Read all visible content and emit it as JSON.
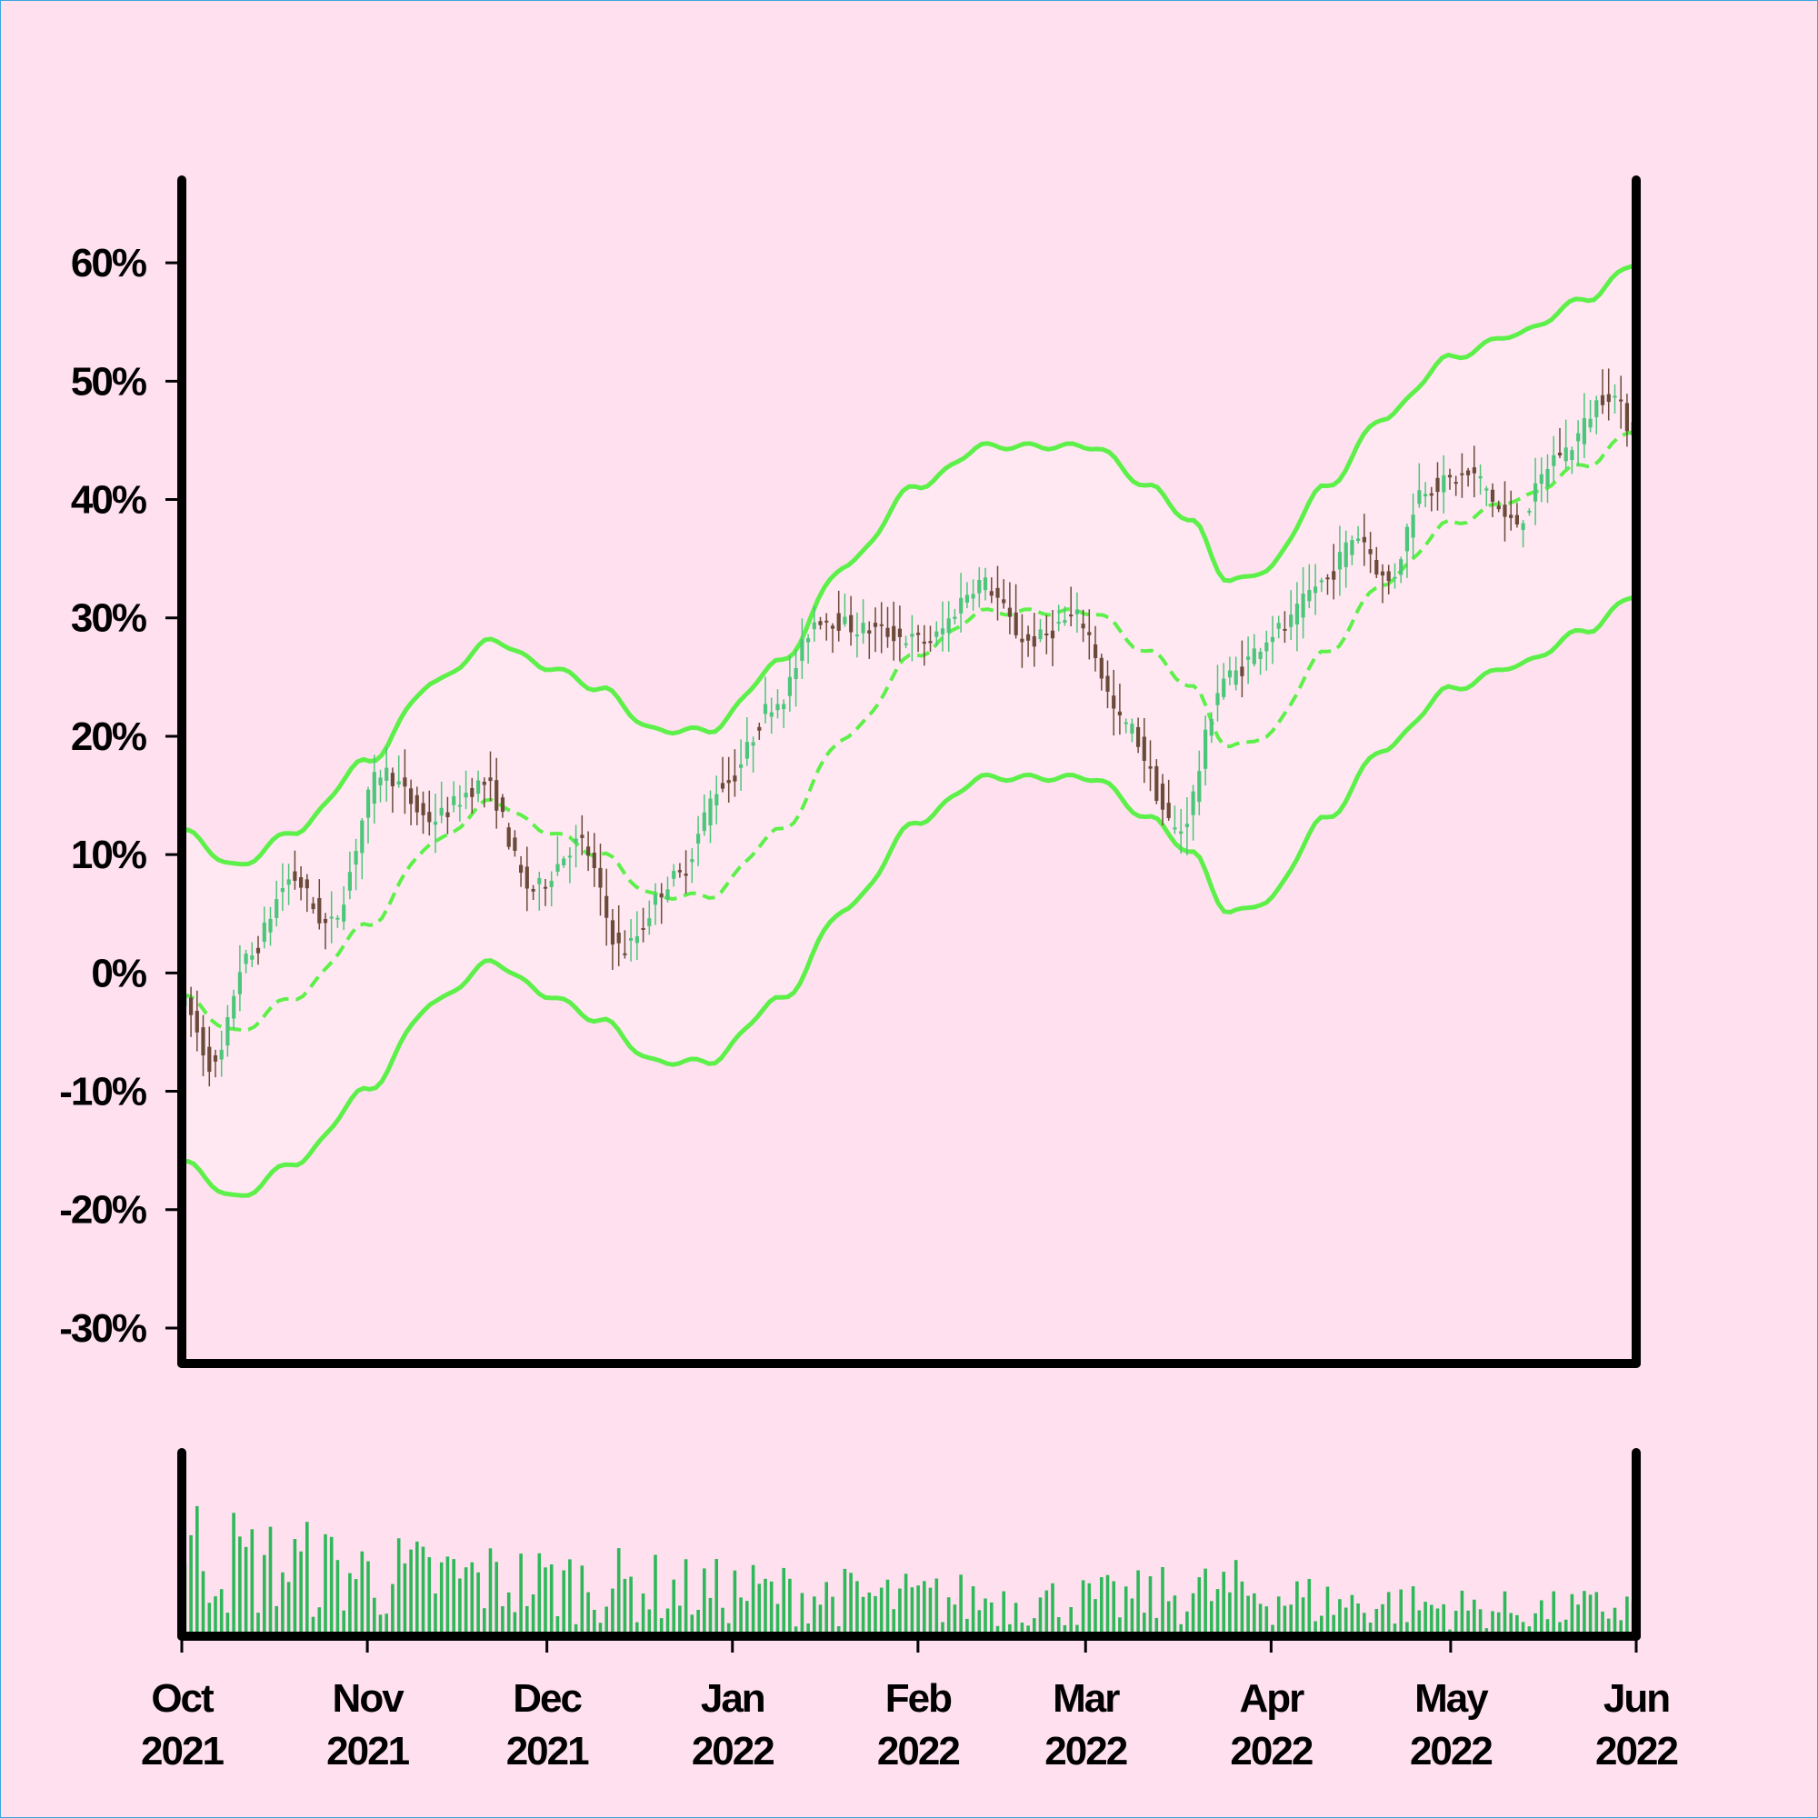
{
  "chart_data": {
    "type": "candlestick",
    "title": "",
    "xlabel": "",
    "ylabel": "",
    "y_unit": "%",
    "ylim": [
      -33,
      67
    ],
    "yticks": [
      {
        "value": 60,
        "label": "60%"
      },
      {
        "value": 50,
        "label": "50%"
      },
      {
        "value": 40,
        "label": "40%"
      },
      {
        "value": 30,
        "label": "30%"
      },
      {
        "value": 20,
        "label": "20%"
      },
      {
        "value": 10,
        "label": "10%"
      },
      {
        "value": 0,
        "label": "0%"
      },
      {
        "value": -10,
        "label": "-10%"
      },
      {
        "value": -20,
        "label": "-20%"
      },
      {
        "value": -30,
        "label": "-30%"
      }
    ],
    "xlim": [
      "2021-10-01",
      "2022-06-01"
    ],
    "xticks": [
      {
        "date": "2021-10-01",
        "month": "Oct",
        "year": "2021"
      },
      {
        "date": "2021-11-01",
        "month": "Nov",
        "year": "2021"
      },
      {
        "date": "2021-12-01",
        "month": "Dec",
        "year": "2021"
      },
      {
        "date": "2022-01-01",
        "month": "Jan",
        "year": "2022"
      },
      {
        "date": "2022-02-01",
        "month": "Feb",
        "year": "2022"
      },
      {
        "date": "2022-03-01",
        "month": "Mar",
        "year": "2022"
      },
      {
        "date": "2022-04-01",
        "month": "Apr",
        "year": "2022"
      },
      {
        "date": "2022-05-01",
        "month": "May",
        "year": "2022"
      },
      {
        "date": "2022-06-01",
        "month": "Jun",
        "year": "2022"
      }
    ],
    "grid": false,
    "colors": {
      "up": "#4cc67a",
      "down": "#6b4a3a",
      "band": "#5ef04a",
      "volume": "#2fb85a",
      "background": "#ffe0ee"
    },
    "price_keypoints": [
      [
        "2021-10-01",
        -2
      ],
      [
        "2021-10-07",
        -8
      ],
      [
        "2021-10-12",
        1
      ],
      [
        "2021-10-20",
        8
      ],
      [
        "2021-10-26",
        4
      ],
      [
        "2021-11-04",
        17
      ],
      [
        "2021-11-12",
        13
      ],
      [
        "2021-11-21",
        16
      ],
      [
        "2021-11-29",
        7
      ],
      [
        "2021-12-07",
        11
      ],
      [
        "2021-12-14",
        2
      ],
      [
        "2021-12-23",
        8
      ],
      [
        "2021-12-31",
        16
      ],
      [
        "2022-01-09",
        23
      ],
      [
        "2022-01-16",
        30
      ],
      [
        "2022-01-24",
        29
      ],
      [
        "2022-02-03",
        28
      ],
      [
        "2022-02-12",
        33
      ],
      [
        "2022-02-20",
        28
      ],
      [
        "2022-02-28",
        30
      ],
      [
        "2022-03-08",
        21
      ],
      [
        "2022-03-17",
        12
      ],
      [
        "2022-03-25",
        25
      ],
      [
        "2022-04-03",
        29
      ],
      [
        "2022-04-10",
        33
      ],
      [
        "2022-04-16",
        37
      ],
      [
        "2022-04-21",
        33
      ],
      [
        "2022-04-27",
        41
      ],
      [
        "2022-05-05",
        42
      ],
      [
        "2022-05-12",
        38
      ],
      [
        "2022-05-20",
        44
      ],
      [
        "2022-05-28",
        49
      ],
      [
        "2022-06-01",
        46
      ]
    ],
    "middle_band_keypoints": [
      [
        "2021-10-01",
        -2
      ],
      [
        "2021-10-10",
        -5
      ],
      [
        "2021-10-20",
        -2
      ],
      [
        "2021-11-01",
        4
      ],
      [
        "2021-11-12",
        11
      ],
      [
        "2021-11-22",
        14.5
      ],
      [
        "2021-12-01",
        12
      ],
      [
        "2021-12-10",
        10
      ],
      [
        "2021-12-19",
        6.5
      ],
      [
        "2021-12-28",
        6.5
      ],
      [
        "2022-01-09",
        12
      ],
      [
        "2022-01-20",
        20
      ],
      [
        "2022-02-01",
        27
      ],
      [
        "2022-02-12",
        30.5
      ],
      [
        "2022-02-22",
        30.5
      ],
      [
        "2022-03-02",
        30.5
      ],
      [
        "2022-03-12",
        27
      ],
      [
        "2022-03-19",
        24
      ],
      [
        "2022-03-25",
        19
      ],
      [
        "2022-03-31",
        20
      ],
      [
        "2022-04-10",
        27
      ],
      [
        "2022-04-20",
        33
      ],
      [
        "2022-05-01",
        38
      ],
      [
        "2022-05-12",
        40
      ],
      [
        "2022-05-24",
        43
      ],
      [
        "2022-06-01",
        46
      ]
    ],
    "band_halfwidth_keypoints": [
      [
        "2021-10-01",
        14
      ],
      [
        "2021-10-25",
        14
      ],
      [
        "2021-11-15",
        13.5
      ],
      [
        "2021-12-10",
        14
      ],
      [
        "2021-12-28",
        14
      ],
      [
        "2022-01-20",
        14.5
      ],
      [
        "2022-02-10",
        14
      ],
      [
        "2022-03-05",
        14
      ],
      [
        "2022-03-22",
        14
      ],
      [
        "2022-04-01",
        14
      ],
      [
        "2022-05-01",
        14
      ],
      [
        "2022-06-01",
        14
      ]
    ],
    "volume_profile_keypoints": [
      [
        "2021-10-01",
        75
      ],
      [
        "2021-10-15",
        60
      ],
      [
        "2021-11-10",
        50
      ],
      [
        "2021-12-05",
        45
      ],
      [
        "2022-01-01",
        38
      ],
      [
        "2022-02-01",
        32
      ],
      [
        "2022-03-01",
        30
      ],
      [
        "2022-03-25",
        38
      ],
      [
        "2022-04-15",
        28
      ],
      [
        "2022-05-15",
        22
      ],
      [
        "2022-06-01",
        25
      ]
    ]
  }
}
